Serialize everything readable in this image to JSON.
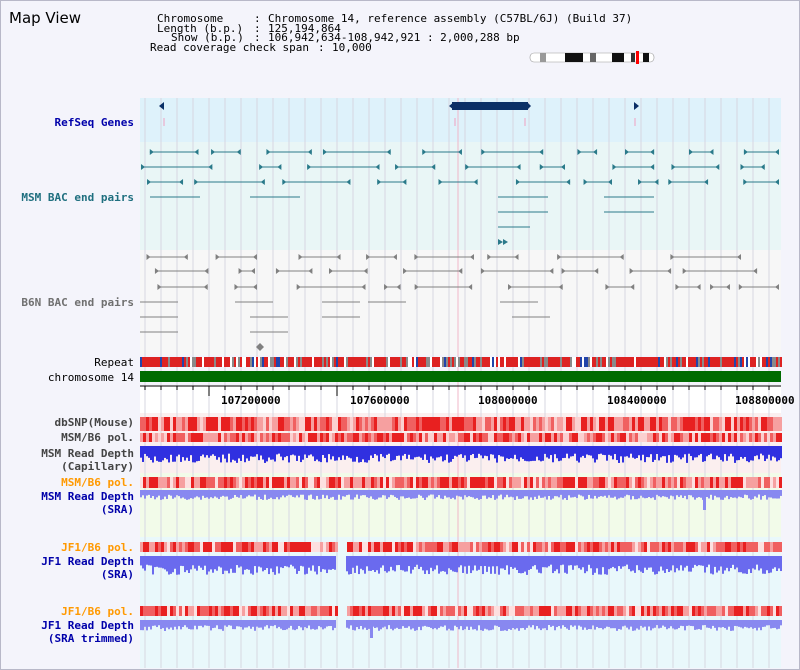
{
  "title": "Map View",
  "info": {
    "chromosome_label": "Chromosome",
    "chromosome_value": "Chromosome 14, reference assembly (C57BL/6J) (Build 37)",
    "length_label": "Length (b.p.)",
    "length_value": "125,194,864",
    "show_label": "Show (b.p.)",
    "show_value": "106,942,634-108,942,921 : 2,000,288 bp",
    "span_label": "Read coverage check span",
    "span_value": "10,000"
  },
  "tracks": {
    "refseq": "RefSeq Genes",
    "msm_bac": "MSM BAC end pairs",
    "b6n_bac": "B6N BAC end pairs",
    "repeat": "Repeat",
    "chromosome": "chromosome 14",
    "dbsnp": "dbSNP(Mouse)",
    "msm_b6_pol": "MSM/B6 pol.",
    "msm_depth_cap_1": "MSM Read Depth",
    "msm_depth_cap_2": "(Capillary)",
    "msm_b6_pol_2": "MSM/B6 pol.",
    "msm_depth_sra_1": "MSM Read Depth",
    "msm_depth_sra_2": "(SRA)",
    "jf1_b6_pol": "JF1/B6 pol.",
    "jf1_depth_sra_1": "JF1 Read Depth",
    "jf1_depth_sra_2": "(SRA)",
    "jf1_b6_pol_2": "JF1/B6 pol.",
    "jf1_depth_trim_1": "JF1 Read Depth",
    "jf1_depth_trim_2": "(SRA trimmed)"
  },
  "axis_ticks": [
    "107200000",
    "107600000",
    "108000000",
    "108400000",
    "108800000"
  ],
  "colors": {
    "refseq_band": "#def2fb",
    "gene_block": "#0a2f66",
    "bac_teal": "#2a7a8a",
    "bac_gray": "#808080",
    "chromosome_green": "#006b00",
    "depth_blue": "#4a4ae8",
    "depth_light": "#8888f0",
    "snp_red": "#f03030",
    "polymorphism_pink": "#f7bcbc"
  }
}
